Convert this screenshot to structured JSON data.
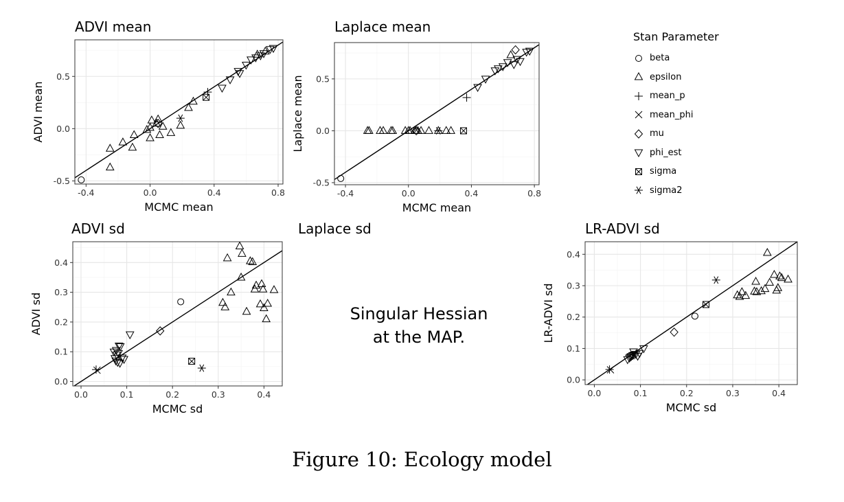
{
  "figure_caption": "Figure 10: Ecology model",
  "legend": {
    "title": "Stan Parameter",
    "items": [
      {
        "name": "beta",
        "shape": "circle"
      },
      {
        "name": "epsilon",
        "shape": "triangle"
      },
      {
        "name": "mean_p",
        "shape": "plus"
      },
      {
        "name": "mean_phi",
        "shape": "cross"
      },
      {
        "name": "mu",
        "shape": "diamond"
      },
      {
        "name": "phi_est",
        "shape": "triangle-down"
      },
      {
        "name": "sigma",
        "shape": "square-x"
      },
      {
        "name": "sigma2",
        "shape": "asterisk"
      }
    ]
  },
  "singular_note": {
    "line1": "Singular Hessian",
    "line2": "at the MAP."
  },
  "laplace_sd_title": "Laplace sd",
  "chart_data": [
    {
      "type": "scatter",
      "title": "ADVI mean",
      "xlabel": "MCMC mean",
      "ylabel": "ADVI mean",
      "xlim": [
        -0.47,
        0.83
      ],
      "ylim": [
        -0.53,
        0.85
      ],
      "xticks": [
        -0.4,
        0.0,
        0.4,
        0.8
      ],
      "xtick_labels": [
        "-0.4",
        "0.0",
        "0.4",
        "0.8"
      ],
      "yticks": [
        -0.5,
        0.0,
        0.5
      ],
      "ytick_labels": [
        "-0.5",
        "0.0",
        "0.5"
      ],
      "grid": true,
      "reference_line": "y = x",
      "points": [
        {
          "x": -0.43,
          "y": -0.49,
          "param": "beta"
        },
        {
          "x": -0.25,
          "y": -0.37,
          "param": "epsilon"
        },
        {
          "x": -0.25,
          "y": -0.19,
          "param": "epsilon"
        },
        {
          "x": -0.17,
          "y": -0.13,
          "param": "epsilon"
        },
        {
          "x": -0.11,
          "y": -0.18,
          "param": "epsilon"
        },
        {
          "x": -0.1,
          "y": -0.06,
          "param": "epsilon"
        },
        {
          "x": -0.02,
          "y": -0.01,
          "param": "epsilon"
        },
        {
          "x": 0.0,
          "y": 0.01,
          "param": "epsilon"
        },
        {
          "x": 0.0,
          "y": -0.09,
          "param": "epsilon"
        },
        {
          "x": 0.01,
          "y": 0.08,
          "param": "epsilon"
        },
        {
          "x": 0.04,
          "y": 0.05,
          "param": "epsilon"
        },
        {
          "x": 0.05,
          "y": 0.09,
          "param": "epsilon"
        },
        {
          "x": 0.06,
          "y": -0.06,
          "param": "epsilon"
        },
        {
          "x": 0.08,
          "y": 0.02,
          "param": "epsilon"
        },
        {
          "x": 0.13,
          "y": -0.04,
          "param": "epsilon"
        },
        {
          "x": 0.19,
          "y": 0.03,
          "param": "epsilon"
        },
        {
          "x": 0.24,
          "y": 0.2,
          "param": "epsilon"
        },
        {
          "x": 0.27,
          "y": 0.26,
          "param": "epsilon"
        },
        {
          "x": 0.36,
          "y": 0.35,
          "param": "mean_p"
        },
        {
          "x": 0.35,
          "y": 0.3,
          "param": "sigma"
        },
        {
          "x": 0.19,
          "y": 0.1,
          "param": "sigma2"
        },
        {
          "x": 0.05,
          "y": 0.05,
          "param": "mu"
        },
        {
          "x": 0.45,
          "y": 0.39,
          "param": "phi_est"
        },
        {
          "x": 0.5,
          "y": 0.47,
          "param": "phi_est"
        },
        {
          "x": 0.55,
          "y": 0.55,
          "param": "phi_est"
        },
        {
          "x": 0.56,
          "y": 0.53,
          "param": "phi_est"
        },
        {
          "x": 0.6,
          "y": 0.61,
          "param": "phi_est"
        },
        {
          "x": 0.63,
          "y": 0.66,
          "param": "phi_est"
        },
        {
          "x": 0.66,
          "y": 0.68,
          "param": "phi_est"
        },
        {
          "x": 0.69,
          "y": 0.7,
          "param": "phi_est"
        },
        {
          "x": 0.71,
          "y": 0.72,
          "param": "phi_est"
        },
        {
          "x": 0.75,
          "y": 0.76,
          "param": "phi_est"
        },
        {
          "x": 0.77,
          "y": 0.77,
          "param": "phi_est"
        },
        {
          "x": 0.67,
          "y": 0.71,
          "param": "epsilon"
        },
        {
          "x": 0.72,
          "y": 0.74,
          "param": "epsilon"
        }
      ]
    },
    {
      "type": "scatter",
      "title": "Laplace mean",
      "xlabel": "MCMC mean",
      "ylabel": "Laplace mean",
      "xlim": [
        -0.47,
        0.83
      ],
      "ylim": [
        -0.52,
        0.85
      ],
      "xticks": [
        -0.4,
        0.0,
        0.4,
        0.8
      ],
      "xtick_labels": [
        "-0.4",
        "0.0",
        "0.4",
        "0.8"
      ],
      "yticks": [
        -0.5,
        0.0,
        0.5
      ],
      "ytick_labels": [
        "-0.5",
        "0.0",
        "0.5"
      ],
      "grid": true,
      "reference_line": "y = x",
      "points": [
        {
          "x": -0.43,
          "y": -0.46,
          "param": "beta"
        },
        {
          "x": -0.26,
          "y": 0.0,
          "param": "epsilon"
        },
        {
          "x": -0.25,
          "y": 0.0,
          "param": "epsilon"
        },
        {
          "x": -0.18,
          "y": 0.0,
          "param": "epsilon"
        },
        {
          "x": -0.16,
          "y": 0.0,
          "param": "epsilon"
        },
        {
          "x": -0.11,
          "y": 0.0,
          "param": "epsilon"
        },
        {
          "x": -0.1,
          "y": 0.0,
          "param": "epsilon"
        },
        {
          "x": -0.02,
          "y": 0.0,
          "param": "epsilon"
        },
        {
          "x": 0.0,
          "y": 0.0,
          "param": "epsilon"
        },
        {
          "x": 0.01,
          "y": 0.0,
          "param": "epsilon"
        },
        {
          "x": 0.04,
          "y": 0.0,
          "param": "epsilon"
        },
        {
          "x": 0.05,
          "y": 0.0,
          "param": "epsilon"
        },
        {
          "x": 0.06,
          "y": 0.0,
          "param": "epsilon"
        },
        {
          "x": 0.08,
          "y": 0.0,
          "param": "epsilon"
        },
        {
          "x": 0.13,
          "y": 0.0,
          "param": "epsilon"
        },
        {
          "x": 0.19,
          "y": 0.0,
          "param": "epsilon"
        },
        {
          "x": 0.24,
          "y": 0.0,
          "param": "epsilon"
        },
        {
          "x": 0.27,
          "y": 0.0,
          "param": "epsilon"
        },
        {
          "x": 0.35,
          "y": 0.0,
          "param": "sigma"
        },
        {
          "x": 0.19,
          "y": 0.0,
          "param": "sigma2"
        },
        {
          "x": 0.05,
          "y": 0.0,
          "param": "mu"
        },
        {
          "x": 0.37,
          "y": 0.32,
          "param": "mean_p"
        },
        {
          "x": 0.44,
          "y": 0.42,
          "param": "phi_est"
        },
        {
          "x": 0.49,
          "y": 0.5,
          "param": "phi_est"
        },
        {
          "x": 0.55,
          "y": 0.58,
          "param": "phi_est"
        },
        {
          "x": 0.57,
          "y": 0.6,
          "param": "phi_est"
        },
        {
          "x": 0.6,
          "y": 0.62,
          "param": "phi_est"
        },
        {
          "x": 0.63,
          "y": 0.66,
          "param": "phi_est"
        },
        {
          "x": 0.67,
          "y": 0.64,
          "param": "phi_est"
        },
        {
          "x": 0.69,
          "y": 0.69,
          "param": "phi_est"
        },
        {
          "x": 0.71,
          "y": 0.67,
          "param": "phi_est"
        },
        {
          "x": 0.75,
          "y": 0.76,
          "param": "phi_est"
        },
        {
          "x": 0.77,
          "y": 0.77,
          "param": "phi_est"
        },
        {
          "x": 0.68,
          "y": 0.78,
          "param": "mu"
        },
        {
          "x": 0.65,
          "y": 0.73,
          "param": "epsilon"
        }
      ]
    },
    {
      "type": "scatter",
      "title": "ADVI sd",
      "xlabel": "MCMC sd",
      "ylabel": "ADVI sd",
      "xlim": [
        -0.018,
        0.44
      ],
      "ylim": [
        -0.015,
        0.47
      ],
      "xticks": [
        0.0,
        0.1,
        0.2,
        0.3,
        0.4
      ],
      "xtick_labels": [
        "0.0",
        "0.1",
        "0.2",
        "0.3",
        "0.4"
      ],
      "yticks": [
        0.0,
        0.1,
        0.2,
        0.3,
        0.4
      ],
      "ytick_labels": [
        "0.0",
        "0.1",
        "0.2",
        "0.3",
        "0.4"
      ],
      "grid": true,
      "reference_line": "y = x",
      "points": [
        {
          "x": 0.033,
          "y": 0.04,
          "param": "mean_p"
        },
        {
          "x": 0.035,
          "y": 0.038,
          "param": "mean_phi"
        },
        {
          "x": 0.218,
          "y": 0.268,
          "param": "beta"
        },
        {
          "x": 0.173,
          "y": 0.17,
          "param": "mu"
        },
        {
          "x": 0.242,
          "y": 0.068,
          "param": "sigma"
        },
        {
          "x": 0.264,
          "y": 0.045,
          "param": "sigma2"
        },
        {
          "x": 0.107,
          "y": 0.158,
          "param": "phi_est"
        },
        {
          "x": 0.072,
          "y": 0.1,
          "param": "phi_est"
        },
        {
          "x": 0.078,
          "y": 0.09,
          "param": "phi_est"
        },
        {
          "x": 0.074,
          "y": 0.078,
          "param": "phi_est"
        },
        {
          "x": 0.076,
          "y": 0.07,
          "param": "phi_est"
        },
        {
          "x": 0.08,
          "y": 0.065,
          "param": "phi_est"
        },
        {
          "x": 0.083,
          "y": 0.12,
          "param": "phi_est"
        },
        {
          "x": 0.086,
          "y": 0.118,
          "param": "phi_est"
        },
        {
          "x": 0.09,
          "y": 0.08,
          "param": "phi_est"
        },
        {
          "x": 0.094,
          "y": 0.075,
          "param": "phi_est"
        },
        {
          "x": 0.077,
          "y": 0.105,
          "param": "phi_est"
        },
        {
          "x": 0.085,
          "y": 0.062,
          "param": "phi_est"
        },
        {
          "x": 0.082,
          "y": 0.095,
          "param": "phi_est"
        },
        {
          "x": 0.31,
          "y": 0.265,
          "param": "epsilon"
        },
        {
          "x": 0.315,
          "y": 0.25,
          "param": "epsilon"
        },
        {
          "x": 0.32,
          "y": 0.415,
          "param": "epsilon"
        },
        {
          "x": 0.328,
          "y": 0.3,
          "param": "epsilon"
        },
        {
          "x": 0.347,
          "y": 0.455,
          "param": "epsilon"
        },
        {
          "x": 0.35,
          "y": 0.35,
          "param": "epsilon"
        },
        {
          "x": 0.352,
          "y": 0.43,
          "param": "epsilon"
        },
        {
          "x": 0.362,
          "y": 0.235,
          "param": "epsilon"
        },
        {
          "x": 0.37,
          "y": 0.405,
          "param": "epsilon"
        },
        {
          "x": 0.375,
          "y": 0.402,
          "param": "epsilon"
        },
        {
          "x": 0.38,
          "y": 0.31,
          "param": "epsilon"
        },
        {
          "x": 0.383,
          "y": 0.323,
          "param": "epsilon"
        },
        {
          "x": 0.392,
          "y": 0.26,
          "param": "epsilon"
        },
        {
          "x": 0.395,
          "y": 0.328,
          "param": "epsilon"
        },
        {
          "x": 0.398,
          "y": 0.31,
          "param": "epsilon"
        },
        {
          "x": 0.4,
          "y": 0.247,
          "param": "epsilon"
        },
        {
          "x": 0.405,
          "y": 0.21,
          "param": "epsilon"
        },
        {
          "x": 0.408,
          "y": 0.262,
          "param": "epsilon"
        },
        {
          "x": 0.422,
          "y": 0.308,
          "param": "epsilon"
        }
      ]
    },
    {
      "type": "scatter",
      "title": "LR-ADVI sd",
      "xlabel": "MCMC sd",
      "ylabel": "LR-ADVI sd",
      "xlim": [
        -0.02,
        0.44
      ],
      "ylim": [
        -0.015,
        0.44
      ],
      "xticks": [
        0.0,
        0.1,
        0.2,
        0.3,
        0.4
      ],
      "xtick_labels": [
        "0.0",
        "0.1",
        "0.2",
        "0.3",
        "0.4"
      ],
      "yticks": [
        0.0,
        0.1,
        0.2,
        0.3,
        0.4
      ],
      "ytick_labels": [
        "0.0",
        "0.1",
        "0.2",
        "0.3",
        "0.4"
      ],
      "grid": true,
      "reference_line": "y = x",
      "points": [
        {
          "x": 0.033,
          "y": 0.033,
          "param": "mean_p"
        },
        {
          "x": 0.035,
          "y": 0.032,
          "param": "mean_phi"
        },
        {
          "x": 0.218,
          "y": 0.203,
          "param": "beta"
        },
        {
          "x": 0.173,
          "y": 0.152,
          "param": "mu"
        },
        {
          "x": 0.242,
          "y": 0.24,
          "param": "sigma"
        },
        {
          "x": 0.264,
          "y": 0.318,
          "param": "sigma2"
        },
        {
          "x": 0.107,
          "y": 0.1,
          "param": "phi_est"
        },
        {
          "x": 0.085,
          "y": 0.09,
          "param": "phi_est"
        },
        {
          "x": 0.072,
          "y": 0.065,
          "param": "phi_est"
        },
        {
          "x": 0.076,
          "y": 0.07,
          "param": "phi_est"
        },
        {
          "x": 0.078,
          "y": 0.073,
          "param": "phi_est"
        },
        {
          "x": 0.08,
          "y": 0.075,
          "param": "phi_est"
        },
        {
          "x": 0.083,
          "y": 0.078,
          "param": "phi_est"
        },
        {
          "x": 0.086,
          "y": 0.08,
          "param": "phi_est"
        },
        {
          "x": 0.09,
          "y": 0.082,
          "param": "phi_est"
        },
        {
          "x": 0.094,
          "y": 0.076,
          "param": "phi_est"
        },
        {
          "x": 0.098,
          "y": 0.085,
          "param": "phi_est"
        },
        {
          "x": 0.31,
          "y": 0.27,
          "param": "epsilon"
        },
        {
          "x": 0.315,
          "y": 0.265,
          "param": "epsilon"
        },
        {
          "x": 0.32,
          "y": 0.28,
          "param": "epsilon"
        },
        {
          "x": 0.328,
          "y": 0.268,
          "param": "epsilon"
        },
        {
          "x": 0.347,
          "y": 0.282,
          "param": "epsilon"
        },
        {
          "x": 0.35,
          "y": 0.313,
          "param": "epsilon"
        },
        {
          "x": 0.352,
          "y": 0.28,
          "param": "epsilon"
        },
        {
          "x": 0.362,
          "y": 0.283,
          "param": "epsilon"
        },
        {
          "x": 0.37,
          "y": 0.29,
          "param": "epsilon"
        },
        {
          "x": 0.375,
          "y": 0.405,
          "param": "epsilon"
        },
        {
          "x": 0.38,
          "y": 0.31,
          "param": "epsilon"
        },
        {
          "x": 0.39,
          "y": 0.335,
          "param": "epsilon"
        },
        {
          "x": 0.395,
          "y": 0.285,
          "param": "epsilon"
        },
        {
          "x": 0.398,
          "y": 0.293,
          "param": "epsilon"
        },
        {
          "x": 0.402,
          "y": 0.33,
          "param": "epsilon"
        },
        {
          "x": 0.406,
          "y": 0.325,
          "param": "epsilon"
        },
        {
          "x": 0.42,
          "y": 0.32,
          "param": "epsilon"
        }
      ]
    }
  ]
}
